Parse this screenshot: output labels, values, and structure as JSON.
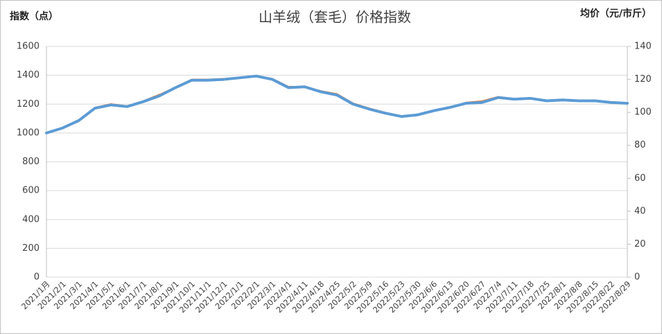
{
  "chart_data": {
    "type": "line",
    "title": "山羊绒（套毛）价格指数",
    "y_label": "指数（点）",
    "y2_label": "均价（元/市斤）",
    "categories": [
      "2021/1月",
      "2021/2/1",
      "2021/3/1",
      "2021/4/1",
      "2021/5/1",
      "2021/6/1",
      "2021/7/1",
      "2021/8/1",
      "2021/9/1",
      "2021/10/1",
      "2021/11/1",
      "2021/12/1",
      "2022/1/1",
      "2022/2/1",
      "2022/3/1",
      "2022/4/1",
      "2022/4/11",
      "2022/4/18",
      "2022/4/25",
      "2022/5/2",
      "2022/5/9",
      "2022/5/16",
      "2022/5/23",
      "2022/5/30",
      "2022/6/6",
      "2022/6/13",
      "2022/6/20",
      "2022/6/27",
      "2022/7/4",
      "2022/7/11",
      "2022/7/18",
      "2022/7/25",
      "2022/8/1",
      "2022/8/8",
      "2022/8/15",
      "2022/8/22",
      "2022/8/29"
    ],
    "series": [
      {
        "color": "#ed7d31",
        "values": [
          1000,
          1035,
          1090,
          1175,
          1200,
          1185,
          1220,
          1265,
          1315,
          1370,
          1370,
          1375,
          1385,
          1395,
          1375,
          1320,
          1320,
          1290,
          1270,
          1205,
          1170,
          1140,
          1115,
          1125,
          1155,
          1175,
          1210,
          1220,
          1250,
          1235,
          1240,
          1225,
          1230,
          1225,
          1225,
          1210,
          1205
        ]
      },
      {
        "color": "#5b9bd5",
        "axis": "y2",
        "values": [
          87.5,
          90.5,
          95,
          102.5,
          104.5,
          103.5,
          106.5,
          110,
          115,
          119.5,
          119.5,
          120,
          121,
          122,
          120,
          115,
          115.5,
          112.5,
          110.5,
          105,
          102,
          99.5,
          97.5,
          98.5,
          101,
          103,
          105.5,
          106,
          109,
          108,
          108.5,
          107,
          107.5,
          107,
          107,
          106,
          105.5
        ]
      }
    ],
    "ylim": [
      0,
      1600
    ],
    "yticks": [
      0,
      200,
      400,
      600,
      800,
      1000,
      1200,
      1400,
      1600
    ],
    "y2lim": [
      0,
      140
    ],
    "y2ticks": [
      0,
      20,
      40,
      60,
      80,
      100,
      120,
      140
    ],
    "grid": true
  }
}
